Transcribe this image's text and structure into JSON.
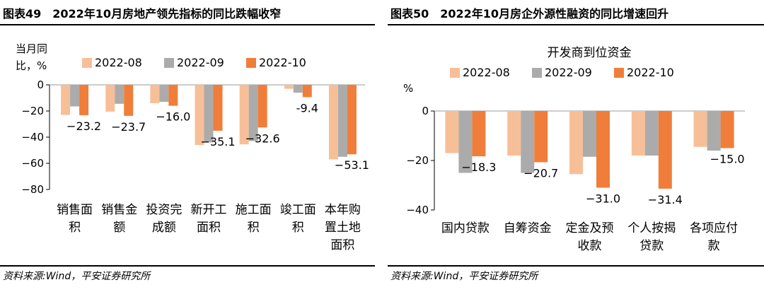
{
  "colors": {
    "series": [
      "#F7BF98",
      "#ABABAB",
      "#F07E3A"
    ],
    "axis": "#000000"
  },
  "panels": [
    {
      "title": "图表49　2022年10月房地产领先指标的同比跌幅收窄",
      "source": "资料来源:Wind，平安证券研究所",
      "chart_data": {
        "type": "bar",
        "title": "",
        "ylabel": "当月同比，%",
        "ylabel_lines": [
          "当月同",
          "比，%"
        ],
        "ylim": [
          -80,
          0
        ],
        "yticks": [
          0,
          -20,
          -40,
          -60,
          -80
        ],
        "categories": [
          "销售面积",
          "销售金额",
          "投资完成额",
          "新开工面积",
          "施工面积",
          "竣工面积",
          "本年购置土地面积"
        ],
        "category_lines": [
          [
            "销售面",
            "积"
          ],
          [
            "销售金",
            "额"
          ],
          [
            "投资完",
            "成额"
          ],
          [
            "新开工",
            "面积"
          ],
          [
            "施工面",
            "积"
          ],
          [
            "竣工面",
            "积"
          ],
          [
            "本年购",
            "置土地",
            "面积"
          ]
        ],
        "series": [
          {
            "name": "2022-08",
            "values": [
              -23,
              -20.5,
              -14,
              -46,
              -45.5,
              -3,
              -57
            ]
          },
          {
            "name": "2022-09",
            "values": [
              -16.5,
              -14.5,
              -13,
              -44,
              -43,
              -6,
              -55
            ]
          },
          {
            "name": "2022-10",
            "values": [
              -23.2,
              -23.7,
              -16.0,
              -35.1,
              -32.6,
              -9.4,
              -53.1
            ]
          }
        ],
        "data_labels": [
          "−23.2",
          "−23.7",
          "−16.0",
          "−35.1",
          "−32.6",
          "-9.4",
          "−53.1"
        ],
        "legend": "top"
      }
    },
    {
      "title": "图表50　2022年10月房企外源性融资的同比增速回升",
      "source": "资料来源:Wind，平安证券研究所",
      "chart_data": {
        "type": "bar",
        "title": "开发商到位资金",
        "ylabel": "%",
        "ylim": [
          -40,
          0
        ],
        "yticks": [
          0,
          -20,
          -40
        ],
        "categories": [
          "国内贷款",
          "自筹资金",
          "定金及预收款",
          "个人按揭贷款",
          "各项应付款"
        ],
        "category_lines": [
          [
            "国内贷款"
          ],
          [
            "自筹资金"
          ],
          [
            "定金及预",
            "收款"
          ],
          [
            "个人按揭",
            "贷款"
          ],
          [
            "各项应付",
            "款"
          ]
        ],
        "series": [
          {
            "name": "2022-08",
            "values": [
              -17,
              -18,
              -25.5,
              -18,
              -14.5
            ]
          },
          {
            "name": "2022-09",
            "values": [
              -25,
              -25,
              -18.5,
              -18,
              -16
            ]
          },
          {
            "name": "2022-10",
            "values": [
              -18.3,
              -20.7,
              -31.0,
              -31.4,
              -15.0
            ]
          }
        ],
        "data_labels": [
          "−18.3",
          "−20.7",
          "−31.0",
          "−31.4",
          "−15.0"
        ],
        "legend": "top"
      }
    }
  ]
}
